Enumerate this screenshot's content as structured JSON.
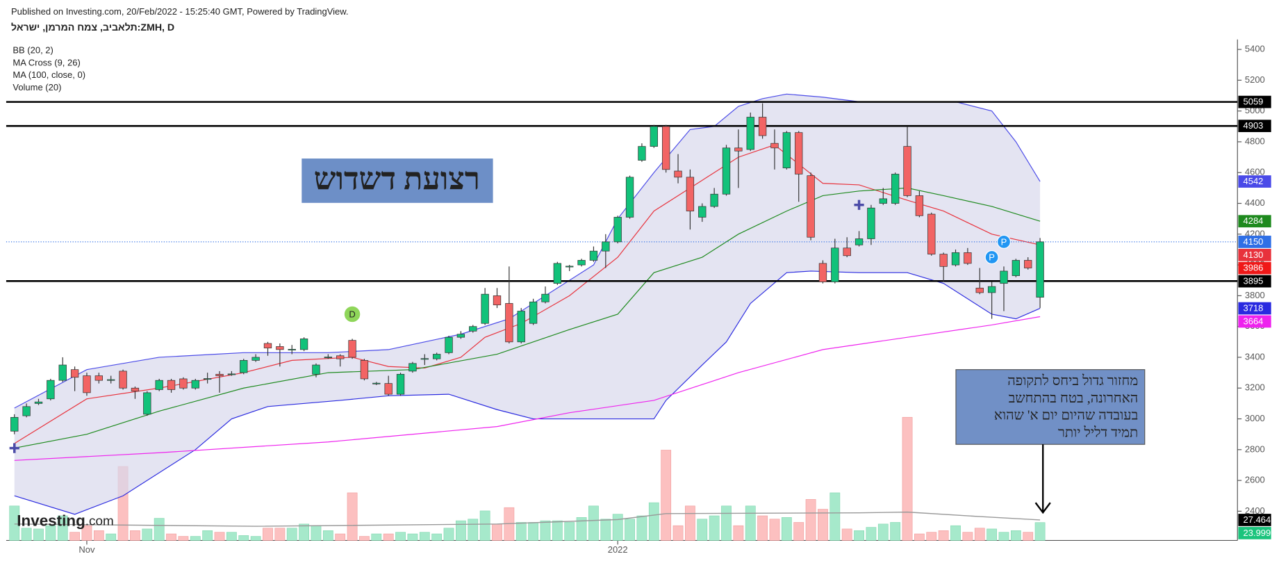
{
  "header": {
    "published": "Published on Investing.com, 20/Feb/2022 - 15:25:40 GMT, Powered by TradingView.",
    "symbol": "תלאביב, צמח המרמן, ישראל:ZMH, D"
  },
  "indicators": [
    "BB (20, 2)",
    "MA Cross (9, 26)",
    "MA (100, close, 0)",
    "Volume (20)"
  ],
  "annotations": {
    "title_box": "רצועת דשדוש",
    "note_box": [
      "מחזור גדול ביחס לתקופה",
      "האחרונה, בטח בהתחשב",
      "בעובדה שהיום יום א' שהוא",
      "תמיד דליל יותר"
    ]
  },
  "logo": [
    "Investing",
    ".com"
  ],
  "chart_data": {
    "type": "candlestick",
    "categories": [
      null,
      null,
      null,
      null,
      null,
      null,
      "Nov",
      null,
      null,
      null,
      null,
      null,
      null,
      null,
      null,
      null,
      null,
      null,
      null,
      null,
      null,
      null,
      null,
      null,
      null,
      null,
      null,
      null,
      null,
      null,
      null,
      null,
      null,
      null,
      null,
      null,
      null,
      null,
      null,
      null,
      null,
      null,
      null,
      null,
      null,
      null,
      null,
      null,
      null,
      null,
      "2022",
      null,
      null,
      null,
      null,
      null,
      null,
      null,
      null,
      null,
      null,
      null,
      null,
      null,
      null,
      null,
      null,
      null,
      null,
      null,
      null,
      null,
      null,
      null,
      null,
      null,
      null,
      null,
      null,
      null,
      null,
      null,
      null,
      null,
      null,
      null
    ],
    "open": [
      2920,
      3020,
      3100,
      3130,
      3250,
      3320,
      3280,
      3280,
      3250,
      3310,
      3200,
      3030,
      3190,
      3250,
      3260,
      3200,
      3260,
      3290,
      3290,
      3300,
      3380,
      3490,
      3470,
      3450,
      3450,
      3290,
      3400,
      3410,
      3510,
      3380,
      3230,
      3230,
      3160,
      3310,
      3390,
      3390,
      3430,
      3530,
      3570,
      3620,
      3800,
      3750,
      3500,
      3620,
      3760,
      3880,
      3990,
      4000,
      4030,
      4090,
      4150,
      4310,
      4680,
      4770,
      4900,
      4610,
      4570,
      4310,
      4380,
      4460,
      4760,
      4750,
      4960,
      4790,
      4630,
      4860,
      4580,
      4010,
      3890,
      4110,
      4130,
      4170,
      4400,
      4400,
      4770,
      4450,
      4330,
      4070,
      4000,
      4080,
      3850,
      3820,
      3880,
      3930,
      4030,
      3790
    ],
    "high": [
      3030,
      3100,
      3130,
      3260,
      3400,
      3340,
      3300,
      3300,
      3280,
      3320,
      3210,
      3180,
      3260,
      3260,
      3270,
      3260,
      3300,
      3310,
      3310,
      3390,
      3420,
      3500,
      3490,
      3480,
      3530,
      3360,
      3420,
      3420,
      3520,
      3390,
      3240,
      3280,
      3300,
      3370,
      3420,
      3430,
      3540,
      3570,
      3610,
      3850,
      3850,
      3990,
      3720,
      3780,
      3860,
      4020,
      4000,
      4040,
      4120,
      4200,
      4320,
      4580,
      4790,
      4910,
      4910,
      4720,
      4620,
      4400,
      4500,
      4780,
      4880,
      4990,
      5050,
      4880,
      4870,
      4870,
      4600,
      4030,
      4170,
      4180,
      4220,
      4390,
      4500,
      4600,
      4900,
      4480,
      4340,
      4080,
      4100,
      4110,
      3980,
      3890,
      3990,
      4040,
      4050,
      4175
    ],
    "low": [
      2900,
      3010,
      3090,
      3120,
      3240,
      3180,
      3150,
      3230,
      3230,
      3190,
      3130,
      3020,
      3180,
      3170,
      3190,
      3190,
      3230,
      3170,
      3280,
      3290,
      3370,
      3410,
      3340,
      3420,
      3440,
      3270,
      3390,
      3340,
      3390,
      3250,
      3220,
      3150,
      3150,
      3300,
      3350,
      3380,
      3420,
      3520,
      3560,
      3610,
      3720,
      3490,
      3490,
      3610,
      3750,
      3870,
      3960,
      3990,
      4020,
      3980,
      4140,
      4300,
      4670,
      4760,
      4600,
      4530,
      4230,
      4280,
      4370,
      4450,
      4500,
      4740,
      4820,
      4620,
      4620,
      4410,
      4160,
      3880,
      3880,
      4050,
      4120,
      4130,
      4390,
      4390,
      4440,
      4310,
      4060,
      3890,
      3990,
      4000,
      3810,
      3650,
      3700,
      3920,
      3970,
      3720
    ],
    "close": [
      3010,
      3080,
      3110,
      3250,
      3350,
      3270,
      3170,
      3250,
      3255,
      3200,
      3180,
      3170,
      3250,
      3190,
      3200,
      3250,
      3262,
      3280,
      3292,
      3380,
      3400,
      3460,
      3450,
      3452,
      3520,
      3350,
      3402,
      3390,
      3400,
      3260,
      3232,
      3160,
      3290,
      3360,
      3392,
      3420,
      3530,
      3550,
      3600,
      3810,
      3740,
      3500,
      3700,
      3760,
      3810,
      4010,
      3992,
      4030,
      4090,
      4150,
      4310,
      4570,
      4770,
      4900,
      4620,
      4570,
      4350,
      4380,
      4460,
      4760,
      4740,
      4960,
      4840,
      4760,
      4860,
      4590,
      4180,
      3890,
      4110,
      4060,
      4170,
      4370,
      4430,
      4590,
      4450,
      4320,
      4070,
      3990,
      4080,
      4010,
      3820,
      3860,
      3960,
      4030,
      3980,
      4150
    ],
    "up_color": "#12c27a",
    "down_color": "#f26464",
    "close_label_color": "#2f6fe6",
    "ylim": [
      2210,
      5465
    ],
    "yticks": [
      2400,
      2600,
      2800,
      3000,
      3200,
      3400,
      3600,
      3800,
      4000,
      4200,
      4400,
      4600,
      4800,
      5000,
      5200,
      5400
    ],
    "levels": [
      5059,
      4903,
      3895
    ],
    "overlays": [
      {
        "color": "#4a4ae8",
        "x": [
          0,
          6,
          12,
          19,
          26,
          31,
          34,
          37,
          41,
          44,
          48,
          50,
          53,
          56,
          58,
          60,
          62,
          64,
          67,
          70,
          74,
          78,
          81,
          83,
          85
        ],
        "values": [
          3070,
          3320,
          3400,
          3430,
          3430,
          3450,
          3500,
          3550,
          3650,
          3800,
          4000,
          4300,
          4600,
          4880,
          4900,
          5030,
          5080,
          5110,
          5090,
          5060,
          5060,
          5060,
          5000,
          4800,
          4542
        ]
      },
      {
        "color": "#2a2ae0",
        "x": [
          0,
          5,
          9,
          15,
          18,
          21,
          27,
          31,
          36,
          40,
          43,
          47,
          53,
          54,
          57,
          59,
          61,
          64,
          66,
          70,
          74,
          77,
          81,
          83,
          85
        ],
        "values": [
          2500,
          2380,
          2500,
          2800,
          3000,
          3080,
          3120,
          3150,
          3160,
          3060,
          3000,
          3000,
          3000,
          3120,
          3350,
          3500,
          3750,
          3950,
          3960,
          3950,
          3950,
          3880,
          3680,
          3650,
          3718
        ]
      },
      {
        "color": "#e8323c",
        "x": [
          0,
          6,
          12,
          19,
          23,
          28,
          31,
          34,
          37,
          39,
          42,
          46,
          50,
          53,
          57,
          60,
          63,
          67,
          70,
          74,
          77,
          81,
          85
        ],
        "values": [
          2840,
          3130,
          3200,
          3300,
          3380,
          3400,
          3340,
          3330,
          3400,
          3530,
          3620,
          3800,
          4050,
          4350,
          4550,
          4700,
          4780,
          4530,
          4520,
          4420,
          4350,
          4200,
          4130
        ]
      },
      {
        "color": "#1e8a1e",
        "x": [
          0,
          6,
          12,
          19,
          26,
          33,
          40,
          46,
          50,
          53,
          57,
          60,
          64,
          67,
          70,
          74,
          77,
          81,
          85
        ],
        "values": [
          2810,
          2900,
          3050,
          3200,
          3300,
          3320,
          3420,
          3580,
          3680,
          3950,
          4050,
          4200,
          4350,
          4450,
          4480,
          4500,
          4450,
          4380,
          4284
        ]
      },
      {
        "color": "#ee22ee",
        "x": [
          0,
          12,
          26,
          40,
          46,
          53,
          60,
          67,
          74,
          81,
          85
        ],
        "values": [
          2730,
          2780,
          2850,
          2950,
          3040,
          3120,
          3300,
          3450,
          3530,
          3610,
          3664
        ]
      }
    ],
    "band_color": "#d8d8ec",
    "extra_price_labels": [
      {
        "value": 3986,
        "color": "#f01818"
      }
    ],
    "events": [
      {
        "label": "D",
        "x": 28,
        "color": "#8fd65a"
      },
      {
        "label": "P",
        "x": 81,
        "color": "#2196f3"
      },
      {
        "label": "P",
        "x": 82,
        "color": "#2196f3"
      }
    ],
    "crosses": {
      "x": [
        0,
        70
      ],
      "values": [
        2810,
        4390
      ],
      "color": "#4b4ba8"
    },
    "volume": {
      "values": [
        46200,
        16500,
        15400,
        19800,
        33000,
        11000,
        19800,
        13200,
        8800,
        99000,
        13200,
        15400,
        29700,
        8800,
        5500,
        5500,
        13200,
        11000,
        11000,
        6600,
        5500,
        16500,
        16500,
        16500,
        22000,
        19800,
        13200,
        8800,
        63800,
        5500,
        8800,
        8800,
        11000,
        8800,
        11000,
        8800,
        16500,
        26400,
        28600,
        39600,
        22000,
        44000,
        24200,
        24200,
        26400,
        26400,
        24200,
        30800,
        46200,
        28600,
        35200,
        28600,
        33000,
        50600,
        121000,
        19800,
        46200,
        28600,
        33000,
        46200,
        19800,
        46200,
        33000,
        28600,
        30800,
        24200,
        55000,
        41800,
        63800,
        15400,
        13200,
        17600,
        22000,
        24200,
        165000,
        8800,
        11000,
        13200,
        19800,
        11000,
        16500,
        15400,
        11000,
        13200,
        11000,
        23999
      ],
      "up_color": "#a6e9cb",
      "down_color": "#fcc0c0",
      "vlim": [
        0,
        176000
      ],
      "ma": {
        "color": "#999999",
        "x": [
          0,
          20,
          40,
          50,
          54,
          70,
          74,
          80,
          85
        ],
        "values": [
          22000,
          19000,
          22000,
          28000,
          36000,
          37000,
          38000,
          32000,
          27464
        ]
      },
      "labels": [
        {
          "value": 27464,
          "label": "27.464K",
          "color": "#000000"
        },
        {
          "value": 23999,
          "label": "23.999K",
          "color": "#1bc47d"
        }
      ]
    }
  }
}
